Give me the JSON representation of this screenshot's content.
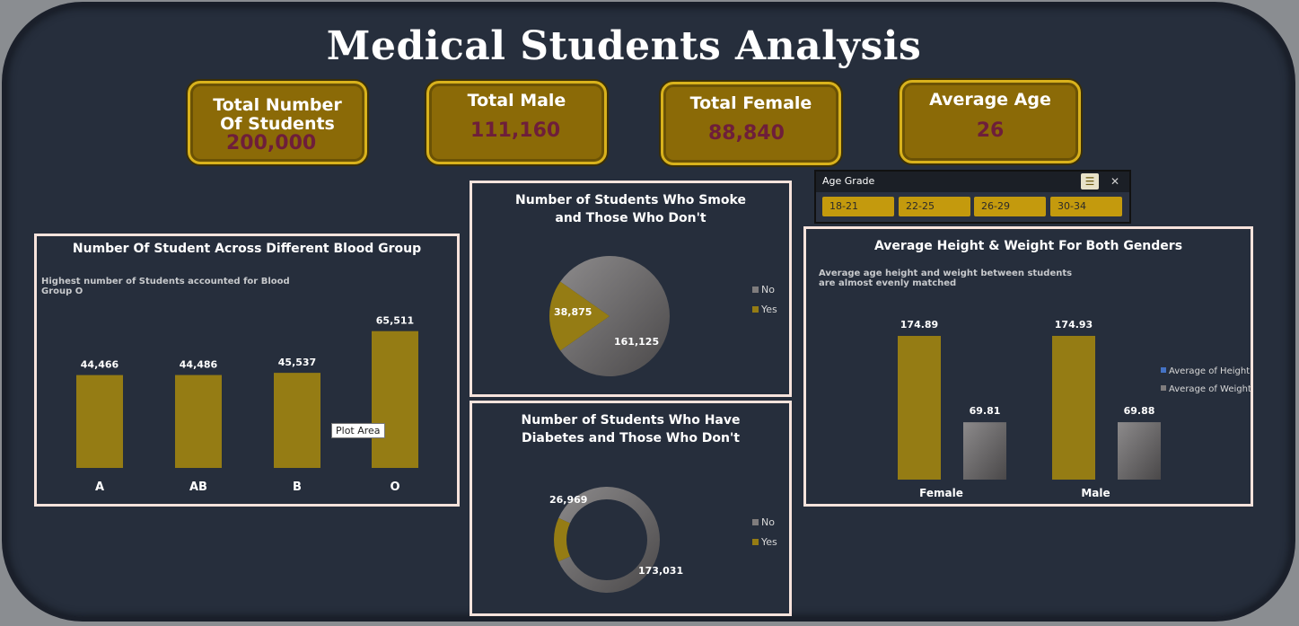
{
  "title": "Medical Students Analysis",
  "kpis": [
    {
      "label": "Total Number Of Students",
      "value": "200,000"
    },
    {
      "label": "Total Male",
      "value": "111,160"
    },
    {
      "label": "Total Female",
      "value": "88,840"
    },
    {
      "label": "Average Age",
      "value": "26"
    }
  ],
  "slicer": {
    "title": "Age Grade",
    "multi_select_icon": "multi-select-icon",
    "clear_filter_icon": "clear-filter-icon",
    "items": [
      "18-21",
      "22-25",
      "26-29",
      "30-34"
    ]
  },
  "tooltip": "Plot Area",
  "colors": {
    "gold": "#957c14",
    "gray": "#7f7c7d",
    "blue": "#4472c4",
    "panel_border": "#f7e3dc"
  },
  "chart_data": [
    {
      "type": "bar",
      "title": "Number Of Student Across Different Blood Group",
      "subtitle": "Highest number of Students accounted for Blood Group O",
      "categories": [
        "A",
        "AB",
        "B",
        "O"
      ],
      "values": [
        44466,
        44486,
        45537,
        65511
      ],
      "labels": [
        "44,466",
        "44,486",
        "45,537",
        "65,511"
      ],
      "ylim": [
        0,
        80000
      ],
      "grid": false
    },
    {
      "type": "pie",
      "title": "Number of Students Who Smoke and Those Who Don't",
      "categories": [
        "No",
        "Yes"
      ],
      "values": [
        161125,
        38875
      ],
      "labels": [
        "161,125",
        "38,875"
      ],
      "legend": "right"
    },
    {
      "type": "pie",
      "variant": "donut",
      "title": "Number of Students Who Have Diabetes and Those Who Don't",
      "categories": [
        "No",
        "Yes"
      ],
      "values": [
        173031,
        26969
      ],
      "labels": [
        "173,031",
        "26,969"
      ],
      "legend": "right"
    },
    {
      "type": "bar",
      "title": "Average Height & Weight For Both Genders",
      "subtitle": "Average age height and weight between students are almost evenly matched",
      "categories": [
        "Female",
        "Male"
      ],
      "series": [
        {
          "name": "Average of Height",
          "values": [
            174.89,
            174.93
          ],
          "labels": [
            "174.89",
            "174.93"
          ]
        },
        {
          "name": "Average of Weight",
          "values": [
            69.81,
            69.88
          ],
          "labels": [
            "69.81",
            "69.88"
          ]
        }
      ],
      "ylim": [
        0,
        190
      ],
      "legend": "right",
      "grid": false
    }
  ]
}
